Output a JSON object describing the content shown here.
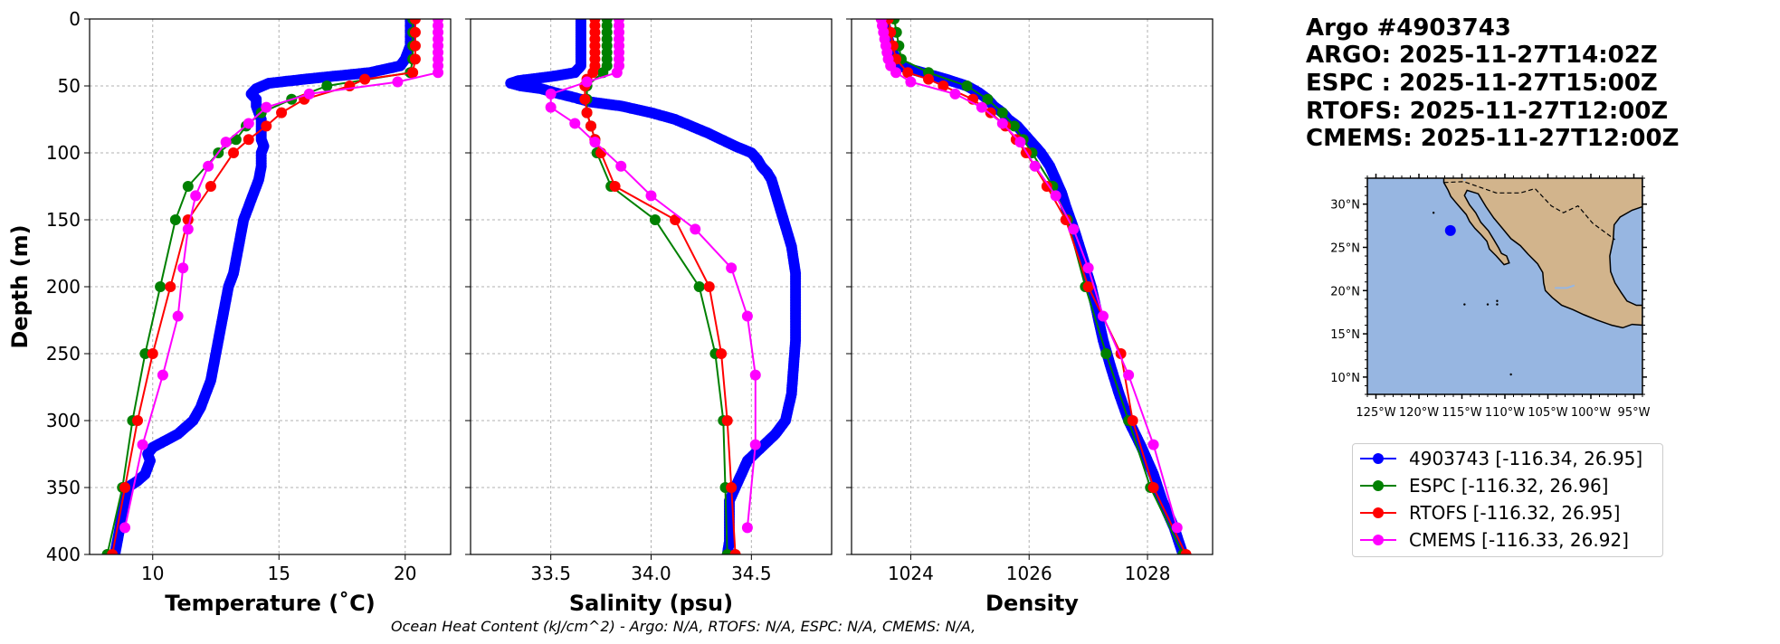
{
  "title": {
    "float_id": "Argo #4903743",
    "argo_time": "ARGO: 2025-11-27T14:02Z",
    "espc_time": "ESPC : 2025-11-27T15:00Z",
    "rtofs_time": "RTOFS: 2025-11-27T12:00Z",
    "cmems_time": "CMEMS: 2025-11-27T12:00Z"
  },
  "footer": "Ocean Heat Content (kJ/cm^2) - Argo: N/A,  RTOFS: N/A,  ESPC: N/A,  CMEMS: N/A,",
  "legend": [
    {
      "label": "4903743 [-116.34, 26.95]",
      "color": "#0000ff"
    },
    {
      "label": "ESPC [-116.32, 26.96]",
      "color": "#008000"
    },
    {
      "label": "RTOFS [-116.32, 26.95]",
      "color": "#ff0000"
    },
    {
      "label": "CMEMS [-116.33, 26.92]",
      "color": "#ff00ff"
    }
  ],
  "map": {
    "lat_labels": [
      "30°N",
      "25°N",
      "20°N",
      "15°N",
      "10°N"
    ],
    "lat_values": [
      30,
      25,
      20,
      15,
      10
    ],
    "lon_labels": [
      "125°W",
      "120°W",
      "115°W",
      "110°W",
      "105°W",
      "100°W",
      "95°W"
    ],
    "lon_values": [
      -125,
      -120,
      -115,
      -110,
      -105,
      -100,
      -95
    ],
    "extent": {
      "lon_min": -126,
      "lon_max": -94,
      "lat_min": 8,
      "lat_max": 33
    },
    "float_position": {
      "lon": -116.34,
      "lat": 26.95
    },
    "ocean_color": "#97b6e1",
    "land_color": "#d2b48c",
    "marker_color": "#0000ff"
  },
  "chart_data": [
    {
      "type": "line",
      "panel": "temperature",
      "xlabel": "Temperature (˚C)",
      "ylabel": "Depth (m)",
      "xlim": [
        7.5,
        21.8
      ],
      "ylim": [
        400,
        0
      ],
      "xticks": [
        10,
        15,
        20
      ],
      "xtick_labels": [
        "10",
        "15",
        "20"
      ],
      "yticks": [
        0,
        50,
        100,
        150,
        200,
        250,
        300,
        350,
        400
      ],
      "ytick_labels": [
        "0",
        "50",
        "100",
        "150",
        "200",
        "250",
        "300",
        "350",
        "400"
      ],
      "grid": true,
      "series": [
        {
          "name": "4903743",
          "color": "#0000ff",
          "depth": [
            0,
            5,
            10,
            15,
            20,
            25,
            30,
            35,
            40,
            45,
            48,
            52,
            56,
            60,
            65,
            70,
            75,
            80,
            85,
            90,
            95,
            100,
            110,
            120,
            130,
            140,
            150,
            160,
            170,
            180,
            190,
            200,
            210,
            220,
            230,
            240,
            250,
            260,
            270,
            280,
            290,
            300,
            310,
            315,
            320,
            325,
            330,
            335,
            340,
            345,
            350,
            360,
            370,
            380,
            390,
            400
          ],
          "values": [
            20.2,
            20.2,
            20.2,
            20.2,
            20.2,
            20.1,
            20.0,
            19.8,
            18.6,
            16.0,
            14.6,
            14.1,
            13.9,
            14.1,
            14.1,
            14.2,
            14.3,
            14.3,
            14.3,
            14.3,
            14.4,
            14.3,
            14.3,
            14.2,
            14.0,
            13.8,
            13.6,
            13.5,
            13.4,
            13.3,
            13.2,
            13.0,
            12.9,
            12.8,
            12.7,
            12.6,
            12.5,
            12.4,
            12.3,
            12.1,
            11.9,
            11.6,
            11.0,
            10.5,
            10.0,
            9.8,
            9.9,
            9.8,
            9.7,
            9.4,
            9.0,
            8.9,
            8.8,
            8.7,
            8.6,
            8.5
          ]
        },
        {
          "name": "ESPC",
          "color": "#008000",
          "depth": [
            0,
            10,
            20,
            30,
            40,
            50,
            60,
            70,
            80,
            90,
            100,
            125,
            150,
            200,
            250,
            300,
            350,
            400
          ],
          "values": [
            20.3,
            20.3,
            20.3,
            20.3,
            20.2,
            16.9,
            15.5,
            14.3,
            13.7,
            13.3,
            12.6,
            11.4,
            10.9,
            10.3,
            9.7,
            9.2,
            8.8,
            8.2
          ]
        },
        {
          "name": "RTOFS",
          "color": "#ff0000",
          "depth": [
            0,
            10,
            20,
            30,
            40,
            45,
            50,
            60,
            70,
            80,
            90,
            100,
            125,
            150,
            200,
            250,
            300,
            350,
            400
          ],
          "values": [
            20.4,
            20.4,
            20.4,
            20.4,
            20.3,
            18.4,
            17.8,
            16.0,
            15.1,
            14.5,
            13.8,
            13.2,
            12.3,
            11.4,
            10.7,
            10.0,
            9.4,
            8.9,
            8.4
          ]
        },
        {
          "name": "CMEMS",
          "color": "#ff00ff",
          "depth": [
            0,
            5,
            10,
            15,
            20,
            25,
            30,
            35,
            40,
            47,
            56,
            66,
            78,
            92,
            110,
            132,
            157,
            186,
            222,
            266,
            318,
            380
          ],
          "values": [
            21.3,
            21.3,
            21.3,
            21.3,
            21.3,
            21.3,
            21.3,
            21.3,
            21.3,
            19.7,
            16.2,
            14.5,
            13.8,
            12.9,
            12.2,
            11.7,
            11.4,
            11.2,
            11.0,
            10.4,
            9.6,
            8.9
          ]
        }
      ]
    },
    {
      "type": "line",
      "panel": "salinity",
      "xlabel": "Salinity (psu)",
      "xlim": [
        33.1,
        34.9
      ],
      "ylim": [
        400,
        0
      ],
      "xticks": [
        33.5,
        34.0,
        34.5
      ],
      "xtick_labels": [
        "33.5",
        "34.0",
        "34.5"
      ],
      "yticks": [
        0,
        50,
        100,
        150,
        200,
        250,
        300,
        350,
        400
      ],
      "grid": true,
      "series": [
        {
          "name": "4903743",
          "color": "#0000ff",
          "depth": [
            0,
            5,
            10,
            15,
            20,
            25,
            30,
            35,
            40,
            43,
            46,
            48,
            50,
            52,
            55,
            58,
            62,
            65,
            70,
            75,
            80,
            85,
            90,
            95,
            100,
            105,
            110,
            115,
            120,
            130,
            140,
            150,
            160,
            170,
            180,
            190,
            200,
            220,
            240,
            260,
            280,
            300,
            310,
            320,
            330,
            340,
            350,
            360,
            370,
            380,
            390,
            400
          ],
          "values": [
            33.65,
            33.65,
            33.65,
            33.65,
            33.65,
            33.65,
            33.65,
            33.65,
            33.62,
            33.5,
            33.34,
            33.3,
            33.35,
            33.45,
            33.52,
            33.6,
            33.7,
            33.85,
            34.0,
            34.12,
            34.2,
            34.28,
            34.35,
            34.42,
            34.5,
            34.53,
            34.55,
            34.58,
            34.6,
            34.62,
            34.64,
            34.66,
            34.68,
            34.7,
            34.71,
            34.72,
            34.72,
            34.72,
            34.72,
            34.71,
            34.7,
            34.67,
            34.62,
            34.55,
            34.48,
            34.45,
            34.42,
            34.39,
            34.39,
            34.39,
            34.39,
            34.38
          ]
        },
        {
          "name": "ESPC",
          "color": "#008000",
          "depth": [
            0,
            5,
            10,
            15,
            20,
            25,
            30,
            35,
            40,
            50,
            60,
            70,
            80,
            90,
            100,
            125,
            150,
            200,
            250,
            300,
            350,
            400
          ],
          "values": [
            33.78,
            33.78,
            33.78,
            33.78,
            33.78,
            33.78,
            33.78,
            33.78,
            33.76,
            33.68,
            33.68,
            33.68,
            33.7,
            33.72,
            33.73,
            33.8,
            34.02,
            34.24,
            34.32,
            34.36,
            34.37,
            34.38
          ]
        },
        {
          "name": "RTOFS",
          "color": "#ff0000",
          "depth": [
            0,
            5,
            10,
            15,
            20,
            25,
            30,
            35,
            40,
            45,
            50,
            60,
            70,
            80,
            90,
            100,
            125,
            150,
            200,
            250,
            300,
            350,
            400
          ],
          "values": [
            33.72,
            33.72,
            33.72,
            33.72,
            33.72,
            33.72,
            33.72,
            33.72,
            33.71,
            33.68,
            33.67,
            33.67,
            33.68,
            33.7,
            33.72,
            33.75,
            33.82,
            34.12,
            34.29,
            34.35,
            34.38,
            34.4,
            34.42
          ]
        },
        {
          "name": "CMEMS",
          "color": "#ff00ff",
          "depth": [
            0,
            5,
            10,
            15,
            20,
            25,
            30,
            35,
            40,
            47,
            56,
            66,
            78,
            92,
            110,
            132,
            157,
            186,
            222,
            266,
            318,
            380
          ],
          "values": [
            33.84,
            33.84,
            33.84,
            33.84,
            33.84,
            33.84,
            33.84,
            33.84,
            33.83,
            33.68,
            33.5,
            33.5,
            33.62,
            33.72,
            33.85,
            34.0,
            34.22,
            34.4,
            34.48,
            34.52,
            34.52,
            34.48
          ]
        }
      ]
    },
    {
      "type": "line",
      "panel": "density",
      "xlabel": "Density",
      "xlim": [
        1023.0,
        1029.1
      ],
      "ylim": [
        400,
        0
      ],
      "xticks": [
        1024,
        1026,
        1028
      ],
      "xtick_labels": [
        "1024",
        "1026",
        "1028"
      ],
      "yticks": [
        0,
        50,
        100,
        150,
        200,
        250,
        300,
        350,
        400
      ],
      "grid": true,
      "series": [
        {
          "name": "4903743",
          "color": "#0000ff",
          "depth": [
            0,
            5,
            10,
            15,
            20,
            25,
            30,
            35,
            40,
            45,
            50,
            55,
            60,
            65,
            70,
            75,
            80,
            85,
            90,
            95,
            100,
            110,
            120,
            130,
            140,
            150,
            160,
            170,
            180,
            190,
            200,
            220,
            240,
            260,
            280,
            300,
            320,
            340,
            360,
            380,
            400
          ],
          "values": [
            1023.55,
            1023.57,
            1023.6,
            1023.62,
            1023.65,
            1023.7,
            1023.75,
            1023.8,
            1024.2,
            1024.6,
            1024.95,
            1025.15,
            1025.3,
            1025.4,
            1025.55,
            1025.65,
            1025.8,
            1025.9,
            1026.0,
            1026.1,
            1026.2,
            1026.35,
            1026.45,
            1026.55,
            1026.62,
            1026.7,
            1026.78,
            1026.85,
            1026.92,
            1026.98,
            1027.05,
            1027.15,
            1027.25,
            1027.38,
            1027.52,
            1027.68,
            1027.9,
            1028.1,
            1028.25,
            1028.45,
            1028.6
          ]
        },
        {
          "name": "ESPC",
          "color": "#008000",
          "depth": [
            0,
            10,
            20,
            30,
            40,
            50,
            60,
            70,
            80,
            90,
            100,
            125,
            150,
            200,
            250,
            300,
            350,
            400
          ],
          "values": [
            1023.72,
            1023.76,
            1023.8,
            1023.84,
            1024.3,
            1024.95,
            1025.3,
            1025.55,
            1025.75,
            1025.9,
            1026.05,
            1026.4,
            1026.65,
            1026.95,
            1027.3,
            1027.68,
            1028.05,
            1028.6
          ]
        },
        {
          "name": "RTOFS",
          "color": "#ff0000",
          "depth": [
            0,
            10,
            20,
            30,
            40,
            45,
            50,
            60,
            70,
            80,
            90,
            100,
            125,
            150,
            200,
            250,
            300,
            350,
            400
          ],
          "values": [
            1023.62,
            1023.66,
            1023.7,
            1023.75,
            1023.95,
            1024.3,
            1024.55,
            1025.05,
            1025.35,
            1025.6,
            1025.78,
            1025.95,
            1026.3,
            1026.62,
            1027.0,
            1027.55,
            1027.75,
            1028.1,
            1028.65
          ]
        },
        {
          "name": "CMEMS",
          "color": "#ff00ff",
          "depth": [
            0,
            5,
            10,
            15,
            20,
            25,
            30,
            35,
            40,
            47,
            56,
            66,
            78,
            92,
            110,
            132,
            157,
            186,
            222,
            266,
            318,
            380
          ],
          "values": [
            1023.5,
            1023.52,
            1023.54,
            1023.56,
            1023.58,
            1023.6,
            1023.62,
            1023.66,
            1023.75,
            1024.0,
            1024.75,
            1025.2,
            1025.55,
            1025.85,
            1026.1,
            1026.45,
            1026.75,
            1027.0,
            1027.25,
            1027.68,
            1028.1,
            1028.5
          ]
        }
      ]
    }
  ]
}
